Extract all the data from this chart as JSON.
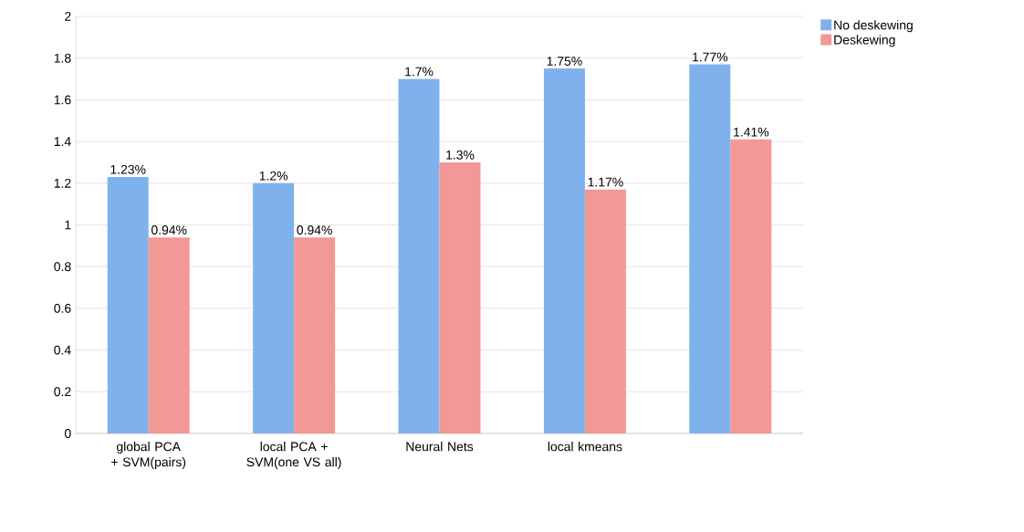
{
  "chart_data": {
    "type": "bar",
    "categories": [
      "global PCA + SVM(pairs)",
      "local PCA + SVM(one VS all)",
      "Neural Nets",
      "local kmeans",
      null
    ],
    "series": [
      {
        "name": "No deskewing",
        "color": "#7fb2ec",
        "values": [
          1.23,
          1.2,
          1.7,
          1.75,
          1.77
        ],
        "value_labels": [
          "1.23%",
          "1.2%",
          "1.7%",
          "1.75%",
          "1.77%"
        ]
      },
      {
        "name": "Deskewing",
        "color": "#f29896",
        "values": [
          0.94,
          0.94,
          1.3,
          1.17,
          1.41
        ],
        "value_labels": [
          "0.94%",
          "0.94%",
          "1.3%",
          "1.17%",
          "1.41%"
        ]
      }
    ],
    "ylim": [
      0,
      2
    ],
    "yticks": [
      0,
      0.2,
      0.4,
      0.6,
      0.8,
      1,
      1.2,
      1.4,
      1.6,
      1.8,
      2
    ],
    "grid": "y",
    "legend": "top right"
  }
}
